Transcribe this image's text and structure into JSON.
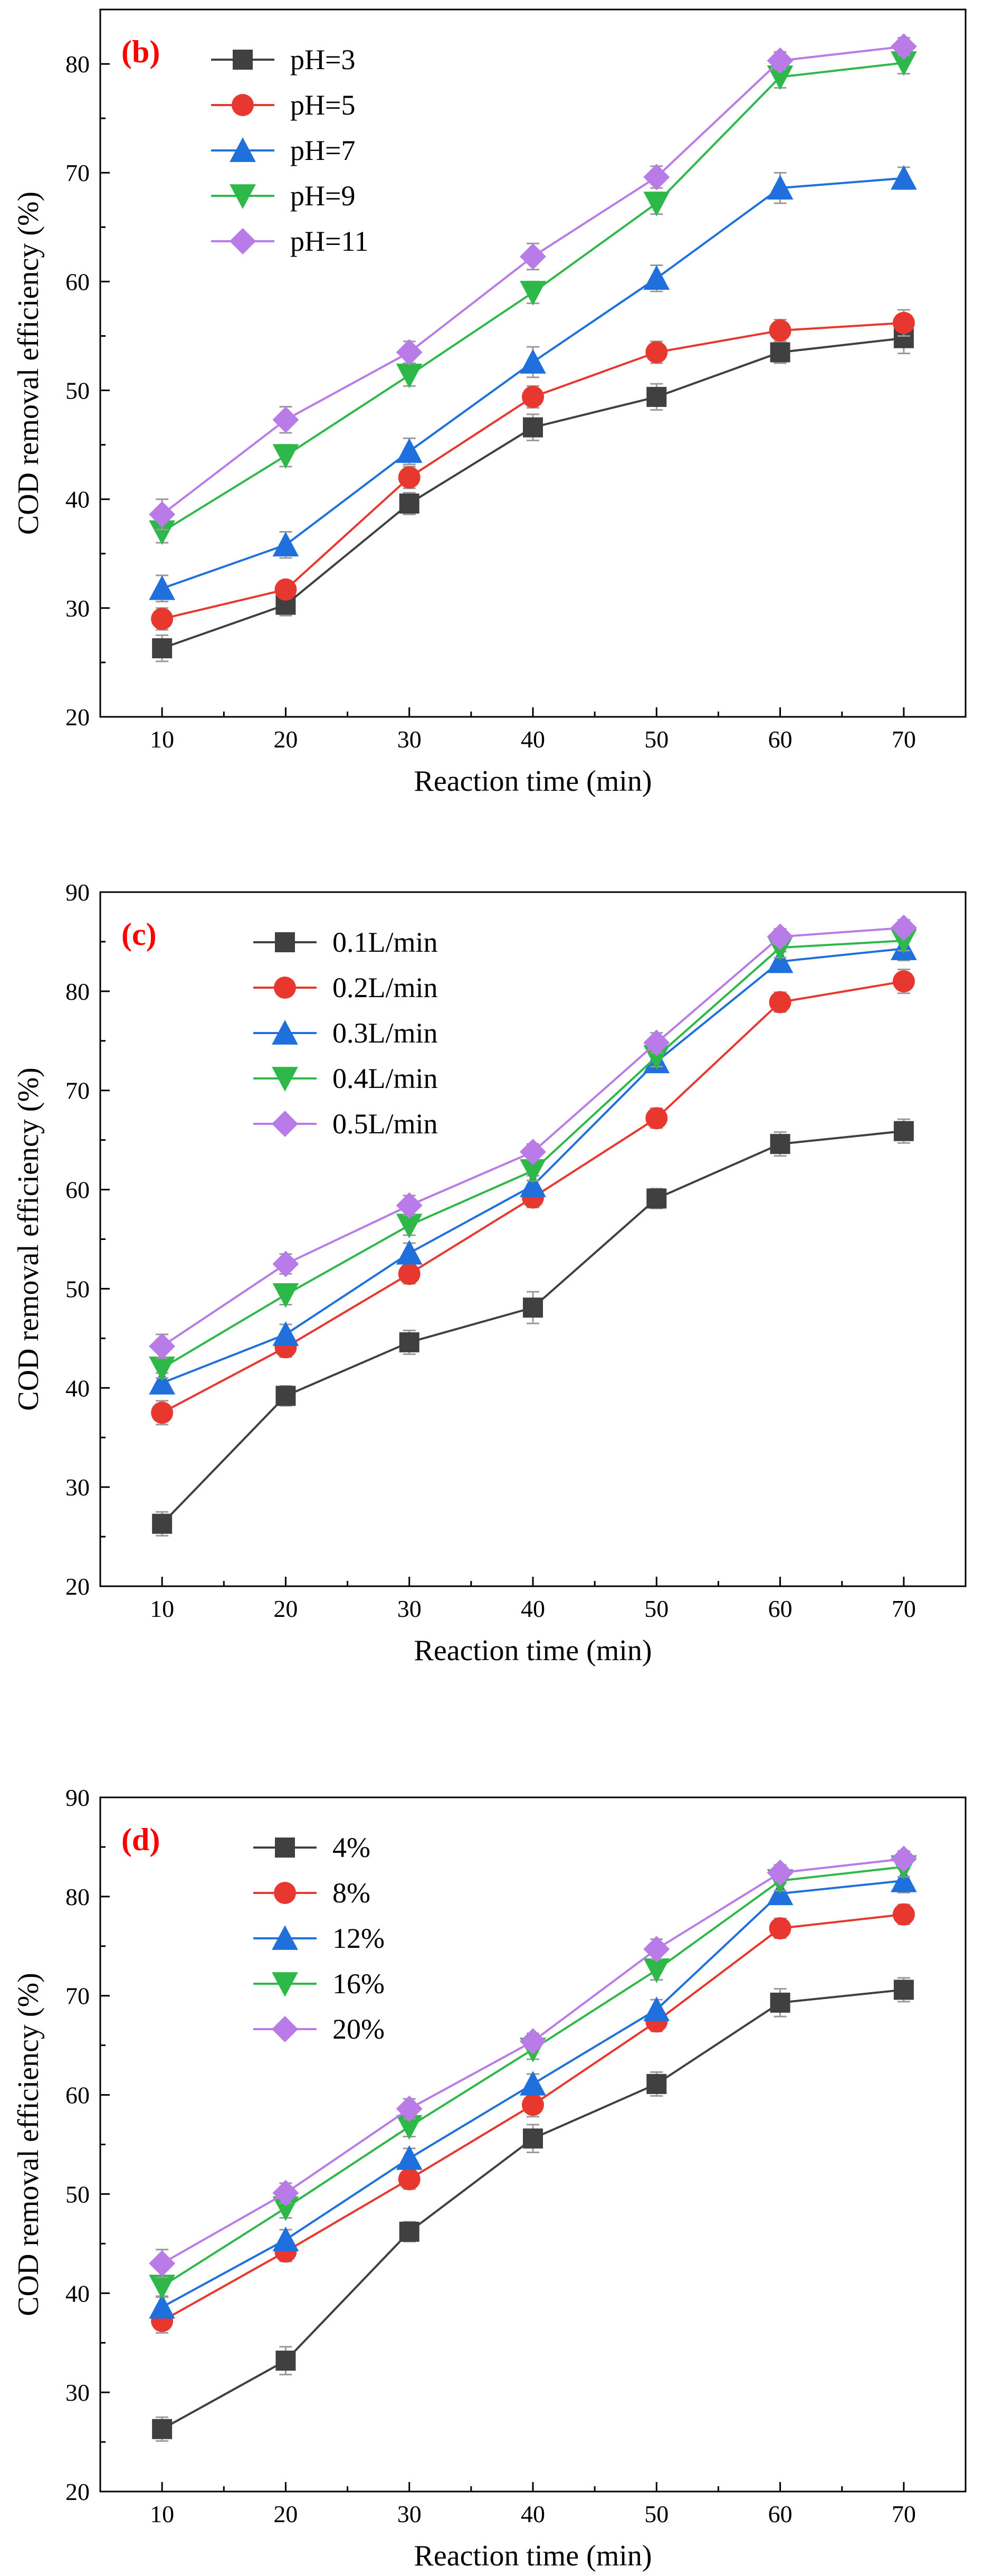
{
  "chart_data": [
    {
      "type": "line",
      "panel_label": "(b)",
      "xlabel": "Reaction time (min)",
      "ylabel": "COD removal efficiency (%)",
      "xlim": [
        5,
        75
      ],
      "ylim": [
        20,
        85
      ],
      "xticks": [
        10,
        20,
        30,
        40,
        50,
        60,
        70
      ],
      "yticks": [
        20,
        30,
        40,
        50,
        60,
        70,
        80
      ],
      "x": [
        10,
        20,
        30,
        40,
        50,
        60,
        70
      ],
      "legend_position": "top-left",
      "series": [
        {
          "name": "pH=3",
          "marker": "square",
          "color": "#404040",
          "values": [
            26.3,
            30.3,
            39.6,
            46.6,
            49.4,
            53.5,
            54.8
          ],
          "errors": [
            1.2,
            1.0,
            1.0,
            1.2,
            1.2,
            1.0,
            1.4
          ]
        },
        {
          "name": "pH=5",
          "marker": "circle",
          "color": "#e8372f",
          "values": [
            29.0,
            31.7,
            42.0,
            49.4,
            53.5,
            55.5,
            56.2
          ],
          "errors": [
            1.0,
            0.8,
            1.0,
            1.0,
            1.0,
            1.0,
            1.2
          ]
        },
        {
          "name": "pH=7",
          "marker": "triangle-up",
          "color": "#1f6fdc",
          "values": [
            31.8,
            35.8,
            44.4,
            52.6,
            60.3,
            68.6,
            69.5
          ],
          "errors": [
            1.2,
            1.2,
            1.2,
            1.4,
            1.2,
            1.4,
            1.0
          ]
        },
        {
          "name": "pH=9",
          "marker": "triangle-down",
          "color": "#2eb84a",
          "values": [
            37.0,
            44.0,
            51.4,
            59.0,
            67.2,
            78.8,
            80.1
          ],
          "errors": [
            1.0,
            1.0,
            1.0,
            1.0,
            1.0,
            1.0,
            1.0
          ]
        },
        {
          "name": "pH=11",
          "marker": "diamond",
          "color": "#b87be8",
          "values": [
            38.6,
            47.3,
            53.5,
            62.3,
            69.6,
            80.3,
            81.6
          ],
          "errors": [
            1.4,
            1.2,
            1.0,
            1.2,
            1.0,
            0.8,
            0.8
          ]
        }
      ]
    },
    {
      "type": "line",
      "panel_label": "(c)",
      "xlabel": "Reaction time (min)",
      "ylabel": "COD removal efficiency (%)",
      "xlim": [
        5,
        75
      ],
      "ylim": [
        20,
        90
      ],
      "xticks": [
        10,
        20,
        30,
        40,
        50,
        60,
        70
      ],
      "yticks": [
        20,
        30,
        40,
        50,
        60,
        70,
        80,
        90
      ],
      "x": [
        10,
        20,
        30,
        40,
        50,
        60,
        70
      ],
      "legend_position": "top-left",
      "series": [
        {
          "name": "0.1L/min",
          "marker": "square",
          "color": "#404040",
          "values": [
            26.3,
            39.2,
            44.6,
            48.1,
            59.1,
            64.6,
            65.9
          ],
          "errors": [
            1.2,
            1.0,
            1.2,
            1.6,
            1.0,
            1.2,
            1.2
          ]
        },
        {
          "name": "0.2L/min",
          "marker": "circle",
          "color": "#e8372f",
          "values": [
            37.5,
            44.1,
            51.5,
            59.2,
            67.2,
            78.9,
            81.0
          ],
          "errors": [
            1.2,
            1.0,
            1.0,
            1.0,
            1.0,
            1.0,
            1.2
          ]
        },
        {
          "name": "0.3L/min",
          "marker": "triangle-up",
          "color": "#1f6fdc",
          "values": [
            40.5,
            45.4,
            53.6,
            60.4,
            72.9,
            83.0,
            84.3
          ],
          "errors": [
            1.0,
            1.0,
            1.0,
            1.0,
            1.0,
            1.0,
            1.2
          ]
        },
        {
          "name": "0.4L/min",
          "marker": "triangle-down",
          "color": "#2eb84a",
          "values": [
            42.0,
            49.4,
            56.4,
            61.9,
            73.4,
            84.4,
            85.1
          ],
          "errors": [
            1.0,
            1.0,
            1.0,
            1.0,
            1.0,
            1.0,
            1.0
          ]
        },
        {
          "name": "0.5L/min",
          "marker": "diamond",
          "color": "#b87be8",
          "values": [
            44.2,
            52.5,
            58.4,
            63.8,
            74.8,
            85.5,
            86.4
          ],
          "errors": [
            1.2,
            1.0,
            1.0,
            0.8,
            1.0,
            0.8,
            0.8
          ]
        }
      ]
    },
    {
      "type": "line",
      "panel_label": "(d)",
      "xlabel": "Reaction time (min)",
      "ylabel": "COD removal efficiency (%)",
      "xlim": [
        5,
        75
      ],
      "ylim": [
        20,
        90
      ],
      "xticks": [
        10,
        20,
        30,
        40,
        50,
        60,
        70
      ],
      "yticks": [
        20,
        30,
        40,
        50,
        60,
        70,
        80,
        90
      ],
      "x": [
        10,
        20,
        30,
        40,
        50,
        60,
        70
      ],
      "legend_position": "top-left",
      "series": [
        {
          "name": "4%",
          "marker": "square",
          "color": "#404040",
          "values": [
            26.3,
            33.2,
            46.2,
            55.6,
            61.1,
            69.3,
            70.6
          ],
          "errors": [
            1.2,
            1.4,
            1.0,
            1.4,
            1.2,
            1.4,
            1.2
          ]
        },
        {
          "name": "8%",
          "marker": "circle",
          "color": "#e8372f",
          "values": [
            37.2,
            44.2,
            51.5,
            59.0,
            67.4,
            76.8,
            78.2
          ],
          "errors": [
            1.2,
            1.0,
            1.0,
            1.2,
            1.0,
            1.0,
            1.0
          ]
        },
        {
          "name": "12%",
          "marker": "triangle-up",
          "color": "#1f6fdc",
          "values": [
            38.6,
            45.4,
            53.6,
            61.1,
            68.6,
            80.3,
            81.6
          ],
          "errors": [
            1.0,
            1.0,
            1.0,
            1.0,
            1.0,
            1.0,
            1.2
          ]
        },
        {
          "name": "16%",
          "marker": "triangle-down",
          "color": "#2eb84a",
          "values": [
            40.7,
            48.6,
            56.8,
            64.6,
            72.6,
            81.6,
            83.0
          ],
          "errors": [
            1.0,
            1.0,
            1.0,
            1.0,
            1.0,
            1.0,
            1.0
          ]
        },
        {
          "name": "20%",
          "marker": "diamond",
          "color": "#b87be8",
          "values": [
            43.0,
            50.1,
            58.6,
            65.4,
            74.7,
            82.4,
            83.8
          ],
          "errors": [
            1.4,
            1.0,
            1.0,
            0.8,
            1.0,
            0.8,
            0.8
          ]
        }
      ]
    }
  ]
}
